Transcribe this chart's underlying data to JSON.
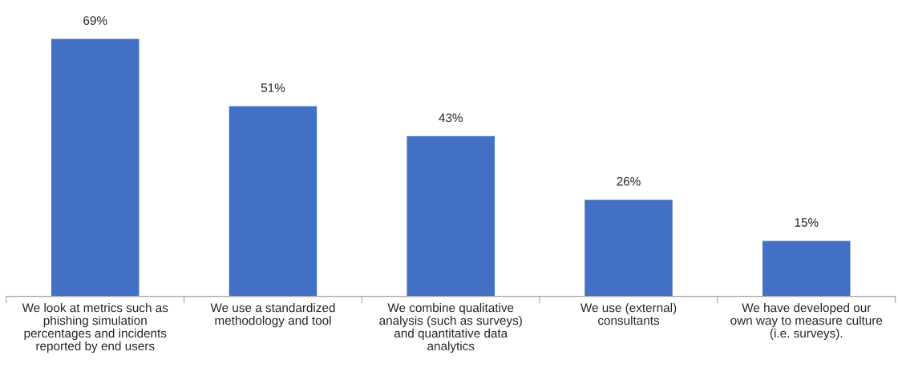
{
  "chart_data": {
    "type": "bar",
    "categories": [
      "We look at metrics such as\nphishing simulation\npercentages and incidents\nreported by end users",
      "We use a standardized\nmethodology and tool",
      "We combine qualitative\nanalysis (such as surveys)\nand quantitative data\nanalytics",
      "We use (external)\nconsultants",
      "We have developed our\nown way to measure culture\n(i.e. surveys)."
    ],
    "values": [
      69,
      51,
      43,
      26,
      15
    ],
    "value_labels": [
      "69%",
      "51%",
      "43%",
      "26%",
      "15%"
    ],
    "color": "#4170c4",
    "grid": false,
    "legend": false
  }
}
